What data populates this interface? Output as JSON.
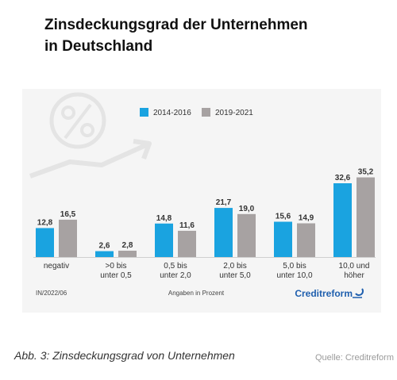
{
  "title_lines": [
    "Zinsdeckungsgrad der Unternehmen",
    "in Deutschland"
  ],
  "caption": "Abb. 3: Zinsdeckungsgrad von Unternehmen",
  "source": "Quelle: Creditreform",
  "chart_footer": {
    "left": "IN/2022/06",
    "center": "Angaben in Prozent",
    "brand": "Creditreform"
  },
  "colors": {
    "series1": "#1aa3e0",
    "series2": "#a7a2a2",
    "watermark": "#e4e4e4"
  },
  "chart_data": {
    "type": "bar",
    "title": "Zinsdeckungsgrad der Unternehmen in Deutschland",
    "categories": [
      [
        "negativ"
      ],
      [
        ">0 bis",
        "unter 0,5"
      ],
      [
        "0,5 bis",
        "unter 2,0"
      ],
      [
        "2,0 bis",
        "unter 5,0"
      ],
      [
        "5,0 bis",
        "unter 10,0"
      ],
      [
        "10,0 und",
        "höher"
      ]
    ],
    "series": [
      {
        "name": "2014-2016",
        "values": [
          12.8,
          2.6,
          14.8,
          21.7,
          15.6,
          32.6
        ],
        "labels": [
          "12,8",
          "2,6",
          "14,8",
          "21,7",
          "15,6",
          "32,6"
        ]
      },
      {
        "name": "2019-2021",
        "values": [
          16.5,
          2.8,
          11.6,
          19.0,
          14.9,
          35.2
        ],
        "labels": [
          "16,5",
          "2,8",
          "11,6",
          "19,0",
          "14,9",
          "35,2"
        ]
      }
    ],
    "unit": "Angaben in Prozent",
    "legend_position": "top",
    "grid": false
  }
}
